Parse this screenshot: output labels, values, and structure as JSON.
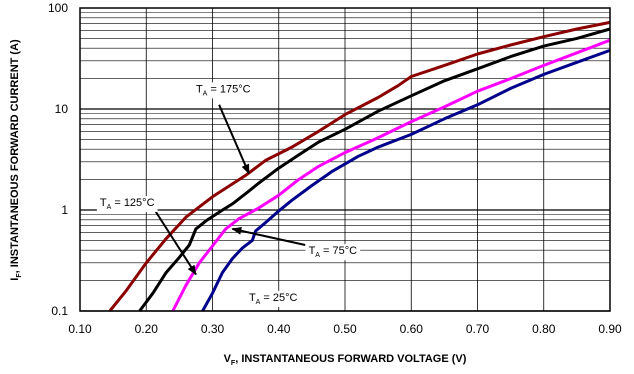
{
  "chart_data": {
    "type": "line",
    "xlabel_main": "V",
    "xlabel_sub": "F",
    "xlabel_rest": ", INSTANTANEOUS FORWARD VOLTAGE (V)",
    "ylabel_main": "I",
    "ylabel_sub": "F",
    "ylabel_rest": ", INSTANTANEOUS FORWARD CURRENT (A)",
    "xlim": [
      0.1,
      0.9
    ],
    "ylim": [
      0.1,
      100
    ],
    "y_scale": "log",
    "x_ticks": [
      "0.10",
      "0.20",
      "0.30",
      "0.40",
      "0.50",
      "0.60",
      "0.70",
      "0.80",
      "0.90"
    ],
    "x_tick_values": [
      0.1,
      0.2,
      0.3,
      0.4,
      0.5,
      0.6,
      0.7,
      0.8,
      0.9
    ],
    "y_ticks": [
      "0.1",
      "1",
      "10",
      "100"
    ],
    "y_tick_values": [
      0.1,
      1,
      10,
      100
    ],
    "grid": true,
    "series": [
      {
        "color": "#8b0000",
        "points": [
          [
            0.145,
            0.1
          ],
          [
            0.17,
            0.16
          ],
          [
            0.2,
            0.3
          ],
          [
            0.23,
            0.52
          ],
          [
            0.26,
            0.85
          ],
          [
            0.3,
            1.35
          ],
          [
            0.35,
            2.2
          ],
          [
            0.38,
            3.1
          ],
          [
            0.42,
            4.2
          ],
          [
            0.46,
            6.0
          ],
          [
            0.5,
            8.8
          ],
          [
            0.55,
            13.0
          ],
          [
            0.58,
            17.0
          ],
          [
            0.6,
            21.0
          ],
          [
            0.65,
            27.0
          ],
          [
            0.7,
            35.0
          ],
          [
            0.75,
            43.0
          ],
          [
            0.8,
            52.0
          ],
          [
            0.85,
            62.0
          ],
          [
            0.9,
            72.0
          ]
        ]
      },
      {
        "color": "#000000",
        "points": [
          [
            0.19,
            0.1
          ],
          [
            0.21,
            0.15
          ],
          [
            0.23,
            0.24
          ],
          [
            0.25,
            0.34
          ],
          [
            0.265,
            0.45
          ],
          [
            0.275,
            0.65
          ],
          [
            0.29,
            0.78
          ],
          [
            0.31,
            0.95
          ],
          [
            0.33,
            1.15
          ],
          [
            0.35,
            1.45
          ],
          [
            0.37,
            1.85
          ],
          [
            0.4,
            2.6
          ],
          [
            0.43,
            3.5
          ],
          [
            0.46,
            4.7
          ],
          [
            0.5,
            6.3
          ],
          [
            0.55,
            9.5
          ],
          [
            0.6,
            13.5
          ],
          [
            0.65,
            19.0
          ],
          [
            0.7,
            25.0
          ],
          [
            0.75,
            33.0
          ],
          [
            0.8,
            42.0
          ],
          [
            0.85,
            50.0
          ],
          [
            0.9,
            62.0
          ]
        ]
      },
      {
        "color": "#ff00ff",
        "points": [
          [
            0.24,
            0.1
          ],
          [
            0.26,
            0.18
          ],
          [
            0.28,
            0.3
          ],
          [
            0.3,
            0.44
          ],
          [
            0.32,
            0.65
          ],
          [
            0.34,
            0.82
          ],
          [
            0.37,
            1.05
          ],
          [
            0.4,
            1.4
          ],
          [
            0.43,
            2.0
          ],
          [
            0.46,
            2.7
          ],
          [
            0.5,
            3.7
          ],
          [
            0.55,
            5.2
          ],
          [
            0.6,
            7.5
          ],
          [
            0.65,
            10.5
          ],
          [
            0.7,
            15.0
          ],
          [
            0.75,
            20.0
          ],
          [
            0.8,
            27.0
          ],
          [
            0.85,
            36.0
          ],
          [
            0.9,
            48.0
          ]
        ]
      },
      {
        "color": "#00008b",
        "points": [
          [
            0.285,
            0.1
          ],
          [
            0.3,
            0.15
          ],
          [
            0.315,
            0.24
          ],
          [
            0.33,
            0.33
          ],
          [
            0.345,
            0.42
          ],
          [
            0.36,
            0.5
          ],
          [
            0.365,
            0.62
          ],
          [
            0.38,
            0.75
          ],
          [
            0.4,
            0.98
          ],
          [
            0.42,
            1.25
          ],
          [
            0.45,
            1.75
          ],
          [
            0.48,
            2.4
          ],
          [
            0.52,
            3.4
          ],
          [
            0.55,
            4.2
          ],
          [
            0.6,
            5.6
          ],
          [
            0.65,
            8.0
          ],
          [
            0.7,
            11.0
          ],
          [
            0.75,
            16.0
          ],
          [
            0.8,
            22.0
          ],
          [
            0.85,
            29.0
          ],
          [
            0.9,
            38.0
          ]
        ]
      }
    ],
    "annotations": [
      {
        "pre": "T",
        "sub": "A",
        "post": " = 175°C",
        "tx": 0.275,
        "ty": 16.0,
        "ax": 0.31,
        "ay": 11.0,
        "bx": 0.355,
        "by": 2.3
      },
      {
        "pre": "T",
        "sub": "A",
        "post": " = 125°C",
        "tx": 0.13,
        "ty": 1.2,
        "ax": 0.205,
        "ay": 1.2,
        "bx": 0.275,
        "by": 0.23
      },
      {
        "pre": "T",
        "sub": "A",
        "post": " = 75°C",
        "tx": 0.445,
        "ty": 0.4,
        "ax": 0.44,
        "ay": 0.45,
        "bx": 0.33,
        "by": 0.65
      },
      {
        "pre": "T",
        "sub": "A",
        "post": " = 25°C",
        "tx": 0.355,
        "ty": 0.138,
        "ax": null,
        "ay": null,
        "bx": null,
        "by": null
      }
    ]
  }
}
